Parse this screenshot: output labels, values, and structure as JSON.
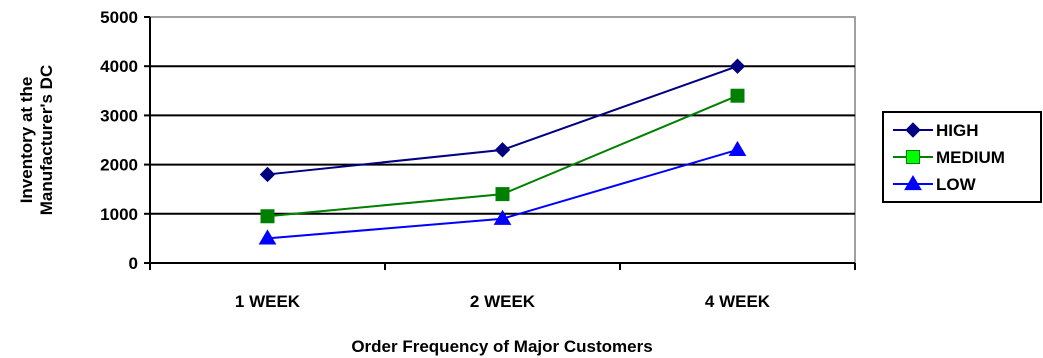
{
  "chart_data": {
    "type": "line",
    "categories": [
      "1 WEEK",
      "2 WEEK",
      "4 WEEK"
    ],
    "series": [
      {
        "name": "HIGH",
        "values": [
          1800,
          2300,
          4000
        ],
        "color": "#000080",
        "marker": "diamond",
        "marker_color": "#000080"
      },
      {
        "name": "MEDIUM",
        "values": [
          950,
          1400,
          3400
        ],
        "color": "#008000",
        "marker": "square",
        "marker_color": "#00ff00"
      },
      {
        "name": "LOW",
        "values": [
          500,
          900,
          2300
        ],
        "color": "#0000ff",
        "marker": "triangle",
        "marker_color": "#0000ff"
      }
    ],
    "title": "",
    "xlabel": "Order Frequency of Major Customers",
    "ylabel_lines": [
      "Inventory at the",
      "Manufacturer's DC"
    ],
    "ylim": [
      0,
      5000
    ],
    "yticks": [
      0,
      1000,
      2000,
      3000,
      4000,
      5000
    ],
    "grid": true,
    "legend_position": "right"
  }
}
